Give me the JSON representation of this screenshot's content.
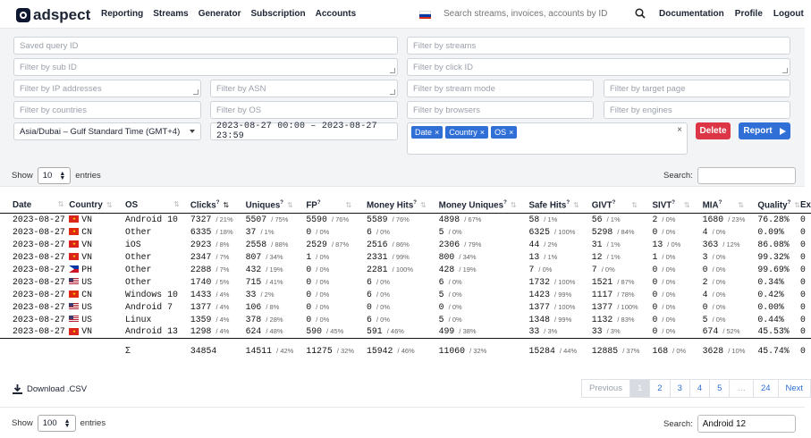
{
  "app": {
    "name": "adspect"
  },
  "nav": {
    "items": [
      "Reporting",
      "Streams",
      "Generator",
      "Subscription",
      "Accounts"
    ],
    "search_placeholder": "Search streams, invoices, accounts by ID",
    "right": [
      "Documentation",
      "Profile",
      "Logout"
    ]
  },
  "filters": {
    "saved_query": "Saved query ID",
    "streams": "Filter by streams",
    "sub_id": "Filter by sub ID",
    "click_id": "Filter by click ID",
    "ip": "Filter by IP addresses",
    "asn": "Filter by ASN",
    "stream_mode": "Filter by stream mode",
    "target_page": "Filter by target page",
    "countries": "Filter by countries",
    "os": "Filter by OS",
    "browsers": "Filter by browsers",
    "engines": "Filter by engines",
    "timezone": "Asia/Dubai – Gulf Standard Time (GMT+4)",
    "daterange": "2023-08-27 00:00 – 2023-08-27 23:59",
    "tags": [
      "Date",
      "Country",
      "OS"
    ],
    "tag_x": "×",
    "clear_x": "×"
  },
  "buttons": {
    "delete": "Delete",
    "report": "Report"
  },
  "top_show": {
    "show": "Show",
    "value": "10",
    "entries": "entries",
    "search_label": "Search:",
    "search_value": ""
  },
  "table": {
    "headers": [
      "Date",
      "Country",
      "OS",
      "Clicks",
      "Uniques",
      "FP",
      "Money Hits",
      "Money Uniques",
      "Safe Hits",
      "GIVT",
      "SIVT",
      "MIA",
      "Quality",
      "Ex"
    ],
    "rows": [
      [
        "2023-08-27",
        "vn",
        "VN",
        "Android 10",
        "7327",
        "21%",
        "5507",
        "75%",
        "5590",
        "76%",
        "5589",
        "76%",
        "4898",
        "67%",
        "58",
        "1%",
        "56",
        "1%",
        "2",
        "0%",
        "1680",
        "23%",
        "76.28%",
        "0"
      ],
      [
        "2023-08-27",
        "cn",
        "CN",
        "Other",
        "6335",
        "18%",
        "37",
        "1%",
        "0",
        "0%",
        "6",
        "0%",
        "5",
        "0%",
        "6325",
        "100%",
        "5298",
        "84%",
        "0",
        "0%",
        "4",
        "0%",
        "0.09%",
        "0"
      ],
      [
        "2023-08-27",
        "vn",
        "VN",
        "iOS",
        "2923",
        "8%",
        "2558",
        "88%",
        "2529",
        "87%",
        "2516",
        "86%",
        "2306",
        "79%",
        "44",
        "2%",
        "31",
        "1%",
        "13",
        "0%",
        "363",
        "12%",
        "86.08%",
        "0"
      ],
      [
        "2023-08-27",
        "vn",
        "VN",
        "Other",
        "2347",
        "7%",
        "807",
        "34%",
        "1",
        "0%",
        "2331",
        "99%",
        "800",
        "34%",
        "13",
        "1%",
        "12",
        "1%",
        "1",
        "0%",
        "3",
        "0%",
        "99.32%",
        "0"
      ],
      [
        "2023-08-27",
        "ph",
        "PH",
        "Other",
        "2288",
        "7%",
        "432",
        "19%",
        "0",
        "0%",
        "2281",
        "100%",
        "428",
        "19%",
        "7",
        "0%",
        "7",
        "0%",
        "0",
        "0%",
        "0",
        "0%",
        "99.69%",
        "0"
      ],
      [
        "2023-08-27",
        "us",
        "US",
        "Other",
        "1740",
        "5%",
        "715",
        "41%",
        "0",
        "0%",
        "6",
        "0%",
        "6",
        "0%",
        "1732",
        "100%",
        "1521",
        "87%",
        "0",
        "0%",
        "2",
        "0%",
        "0.34%",
        "0"
      ],
      [
        "2023-08-27",
        "cn",
        "CN",
        "Windows 10",
        "1433",
        "4%",
        "33",
        "2%",
        "0",
        "0%",
        "6",
        "0%",
        "5",
        "0%",
        "1423",
        "99%",
        "1117",
        "78%",
        "0",
        "0%",
        "4",
        "0%",
        "0.42%",
        "0"
      ],
      [
        "2023-08-27",
        "us",
        "US",
        "Android 7",
        "1377",
        "4%",
        "106",
        "8%",
        "0",
        "0%",
        "0",
        "0%",
        "0",
        "0%",
        "1377",
        "100%",
        "1377",
        "100%",
        "0",
        "0%",
        "0",
        "0%",
        "0.00%",
        "0"
      ],
      [
        "2023-08-27",
        "us",
        "US",
        "Linux",
        "1359",
        "4%",
        "378",
        "28%",
        "0",
        "0%",
        "6",
        "0%",
        "5",
        "0%",
        "1348",
        "99%",
        "1132",
        "83%",
        "0",
        "0%",
        "5",
        "0%",
        "0.44%",
        "0"
      ],
      [
        "2023-08-27",
        "vn",
        "VN",
        "Android 13",
        "1298",
        "4%",
        "624",
        "48%",
        "590",
        "45%",
        "591",
        "46%",
        "499",
        "38%",
        "33",
        "3%",
        "33",
        "3%",
        "0",
        "0%",
        "674",
        "52%",
        "45.53%",
        "0"
      ]
    ],
    "total": {
      "sigma": "Σ",
      "values": [
        "34854",
        "",
        "14511",
        "42%",
        "11275",
        "32%",
        "15942",
        "46%",
        "11060",
        "32%",
        "15284",
        "44%",
        "12885",
        "37%",
        "168",
        "0%",
        "3628",
        "10%",
        "45.74%",
        "0"
      ]
    }
  },
  "download": "Download .CSV",
  "pager": [
    "Previous",
    "1",
    "2",
    "3",
    "4",
    "5",
    "…",
    "24",
    "Next"
  ],
  "bottom_show": {
    "show": "Show",
    "value": "100",
    "entries": "entries",
    "search_label": "Search:",
    "search_value": "Android 12"
  },
  "colors": {
    "primary": "#2f6fd6",
    "danger": "#dc3545"
  }
}
